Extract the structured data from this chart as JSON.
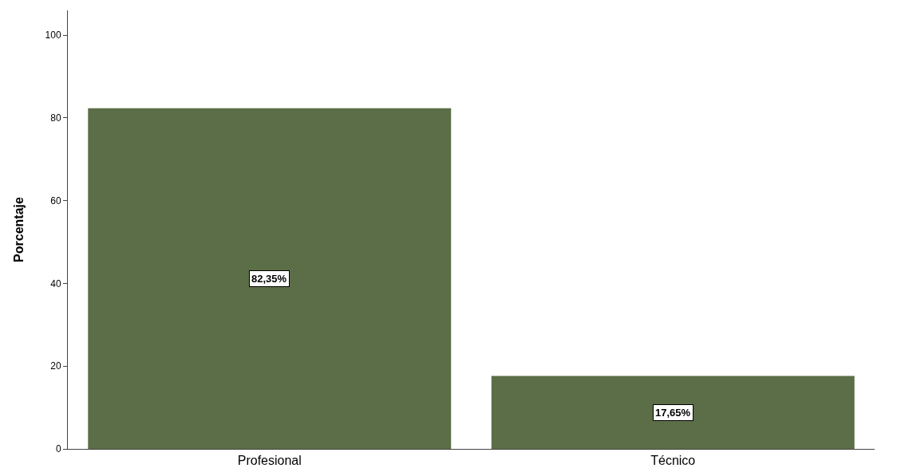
{
  "chart_data": {
    "type": "bar",
    "ylabel": "Porcentaje",
    "categories": [
      "Profesional",
      "Técnico"
    ],
    "values": [
      82.35,
      17.65
    ],
    "value_labels": [
      "82,35%",
      "17,65%"
    ],
    "color": "#5b6e47",
    "ylim": [
      0,
      106
    ],
    "yticks": [
      0,
      20,
      40,
      60,
      80,
      100
    ]
  }
}
